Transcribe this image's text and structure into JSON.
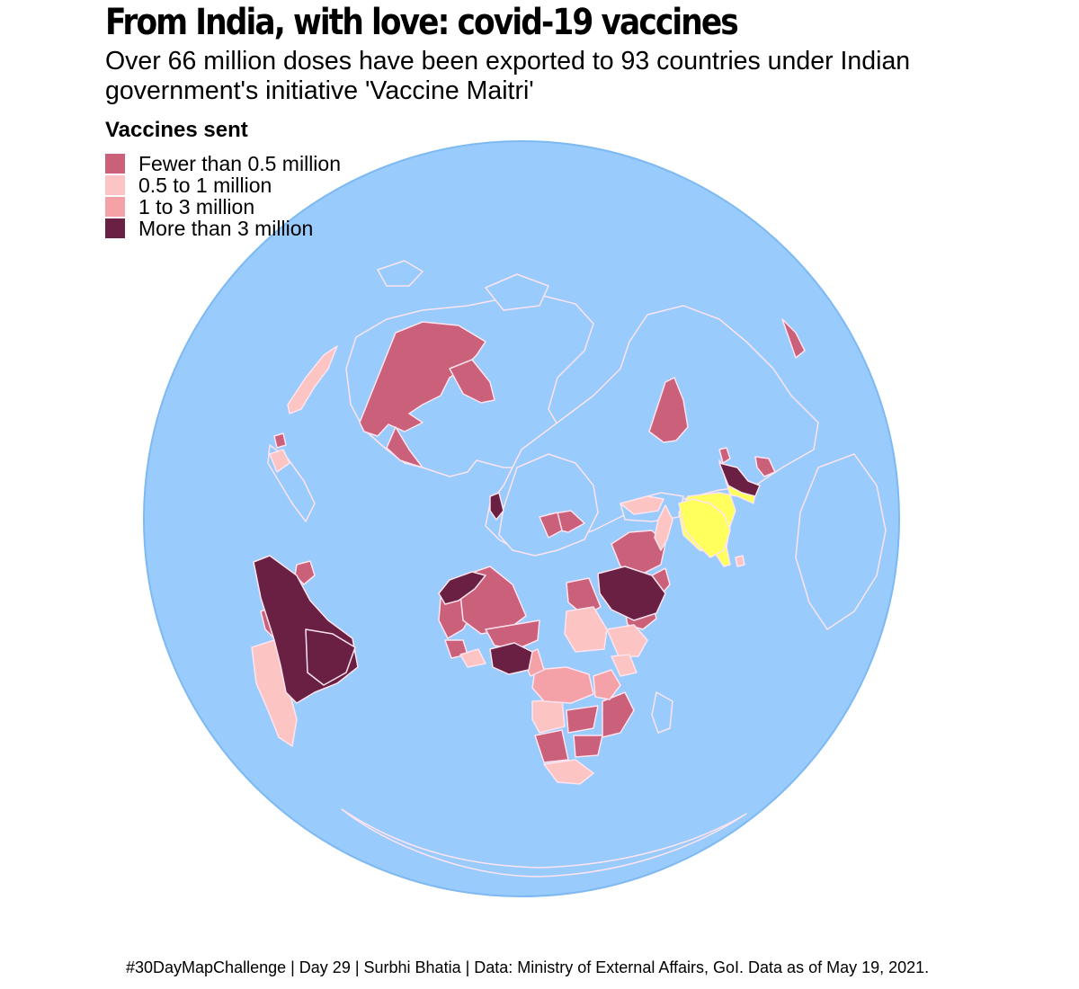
{
  "title": "From India, with love: covid-19 vaccines",
  "subtitle": "Over 66 million doses have been exported to 93 countries under Indian government's initiative 'Vaccine Maitri'",
  "legend": {
    "title": "Vaccines sent",
    "items": [
      {
        "label": "Fewer than 0.5 million",
        "color": "#cb607b"
      },
      {
        "label": "0.5 to 1 million",
        "color": "#fdc4c4"
      },
      {
        "label": "1 to 3 million",
        "color": "#f4a2a8"
      },
      {
        "label": "More than 3 million",
        "color": "#6a2042"
      }
    ]
  },
  "map": {
    "ocean_color": "#99cbfd",
    "rim_color": "#7db9f2",
    "border_color": "#fde4ef",
    "unassigned_color": "#99cbfd",
    "india_color": "#ffff5e"
  },
  "caption": "#30DayMapChallenge | Day 29 | Surbhi Bhatia | Data: Ministry of External Affairs, GoI. Data as of May 19, 2021."
}
